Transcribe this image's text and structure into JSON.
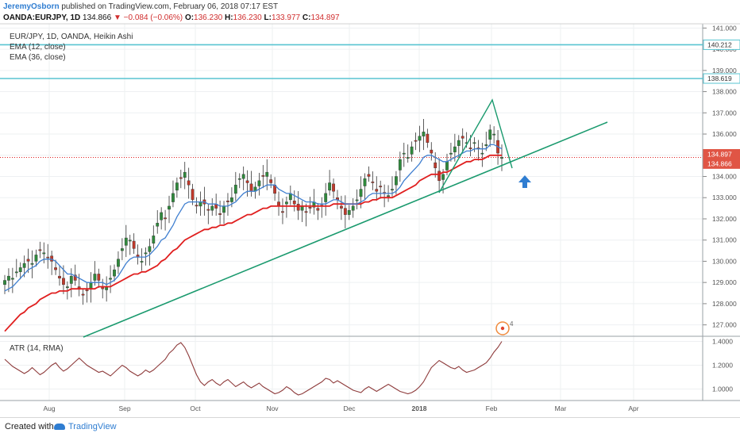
{
  "header": {
    "author": "JeremyOsborn",
    "published_text": "published on TradingView.com, February 06, 2018 07:17 EST",
    "symbol": "OANDA:EURJPY, 1D",
    "last": "134.866",
    "change": "▼ −0.084 (−0.06%)",
    "open_label": "O:",
    "open": "136.230",
    "high_label": "H:",
    "high": "136.230",
    "low_label": "L:",
    "low": "133.977",
    "close_label": "C:",
    "close": "134.897"
  },
  "legend": {
    "main": "EUR/JPY, 1D, OANDA, Heikin Ashi",
    "ema_fast": "EMA (12, close)",
    "ema_slow": "EMA (36, close)",
    "atr": "ATR (14, RMA)"
  },
  "colors": {
    "up": "#2f8a3c",
    "down": "#c0392b",
    "ema_fast": "#3f7fd0",
    "ema_slow": "#e01f1f",
    "trend": "#1a9a6e",
    "hline": "#58c4d1",
    "atr": "#8e3b3b",
    "arrow": "#2f7dd1",
    "tag_red": "#e05545"
  },
  "chart_data": {
    "type": "candlestick",
    "price_axis": {
      "ticks": [
        "141.000",
        "140.000",
        "139.000",
        "138.000",
        "137.000",
        "136.000",
        "135.000",
        "134.000",
        "133.000",
        "132.000",
        "131.000",
        "130.000",
        "129.000",
        "128.000",
        "127.000"
      ],
      "range": [
        126.5,
        141.2
      ]
    },
    "atr_axis": {
      "ticks": [
        "1.4000",
        "1.2000",
        "1.0000"
      ],
      "range": [
        0.93,
        1.41
      ]
    },
    "time_axis": [
      "Aug",
      "Sep",
      "Oct",
      "Nov",
      "Dec",
      "2018",
      "Feb",
      "Mar",
      "Apr"
    ],
    "price_labels": [
      {
        "text": "140.212",
        "value": 140.212,
        "style": "line"
      },
      {
        "text": "138.619",
        "value": 138.619,
        "style": "line"
      },
      {
        "text": "134.897",
        "value": 134.897,
        "style": "red"
      },
      {
        "text": "134.866",
        "value": 134.866,
        "style": "red"
      }
    ],
    "candles_close": [
      129.1,
      129.3,
      129.2,
      129.5,
      129.7,
      129.9,
      130.0,
      129.9,
      130.3,
      130.5,
      130.4,
      130.2,
      130.0,
      129.6,
      129.2,
      128.9,
      128.8,
      129.3,
      129.1,
      128.7,
      128.4,
      128.6,
      129.0,
      129.4,
      129.1,
      128.7,
      128.8,
      129.2,
      129.6,
      130.1,
      130.6,
      131.1,
      131.0,
      130.6,
      130.2,
      130.0,
      130.4,
      130.7,
      131.2,
      131.8,
      132.3,
      132.0,
      132.6,
      133.2,
      133.7,
      133.9,
      134.2,
      133.6,
      132.9,
      132.6,
      132.8,
      132.7,
      132.4,
      132.6,
      132.5,
      132.2,
      132.6,
      132.8,
      133.0,
      133.6,
      133.9,
      134.1,
      133.7,
      133.3,
      133.5,
      133.8,
      134.0,
      134.2,
      133.7,
      133.2,
      132.6,
      132.3,
      132.8,
      133.2,
      132.7,
      132.4,
      132.6,
      132.3,
      132.5,
      132.8,
      132.4,
      132.6,
      133.2,
      133.7,
      133.3,
      132.9,
      132.5,
      132.2,
      132.4,
      132.6,
      132.9,
      133.4,
      133.9,
      134.0,
      133.7,
      133.3,
      133.5,
      133.2,
      133.1,
      133.4,
      134.0,
      134.8,
      135.1,
      134.9,
      135.4,
      135.7,
      135.9,
      136.1,
      135.6,
      135.1,
      134.4,
      133.8,
      134.1,
      134.7,
      135.1,
      135.4,
      135.7,
      135.8,
      135.6,
      135.3,
      135.6,
      135.3,
      135.1,
      135.5,
      136.2,
      136.0,
      135.1,
      134.9
    ],
    "ema_fast": [
      128.6,
      128.7,
      128.8,
      129.0,
      129.2,
      129.4,
      129.6,
      129.7,
      129.8,
      130.0,
      130.1,
      130.1,
      130.1,
      130.0,
      129.8,
      129.6,
      129.4,
      129.4,
      129.3,
      129.2,
      129.1,
      129.0,
      129.0,
      129.0,
      129.0,
      129.0,
      128.9,
      129.0,
      129.1,
      129.3,
      129.6,
      129.9,
      130.1,
      130.2,
      130.2,
      130.2,
      130.2,
      130.3,
      130.5,
      130.7,
      131.0,
      131.1,
      131.4,
      131.7,
      132.1,
      132.4,
      132.7,
      132.8,
      132.8,
      132.8,
      132.8,
      132.8,
      132.7,
      132.7,
      132.7,
      132.6,
      132.6,
      132.6,
      132.7,
      132.8,
      133.0,
      133.2,
      133.3,
      133.3,
      133.3,
      133.4,
      133.5,
      133.6,
      133.6,
      133.6,
      133.4,
      133.3,
      133.2,
      133.2,
      133.1,
      133.0,
      132.9,
      132.8,
      132.8,
      132.8,
      132.7,
      132.7,
      132.7,
      132.8,
      132.9,
      132.9,
      132.8,
      132.7,
      132.7,
      132.7,
      132.7,
      132.8,
      132.9,
      133.1,
      133.2,
      133.2,
      133.2,
      133.2,
      133.2,
      133.2,
      133.3,
      133.5,
      133.8,
      134.0,
      134.2,
      134.4,
      134.6,
      134.9,
      135.0,
      135.0,
      134.9,
      134.8,
      134.7,
      134.7,
      134.8,
      134.9,
      135.0,
      135.1,
      135.2,
      135.2,
      135.3,
      135.3,
      135.3,
      135.3,
      135.5,
      135.5,
      135.4,
      135.3
    ],
    "ema_slow": [
      126.7,
      126.9,
      127.1,
      127.3,
      127.5,
      127.6,
      127.8,
      127.9,
      128.0,
      128.2,
      128.3,
      128.4,
      128.5,
      128.5,
      128.6,
      128.6,
      128.6,
      128.7,
      128.7,
      128.7,
      128.7,
      128.7,
      128.7,
      128.7,
      128.8,
      128.8,
      128.8,
      128.8,
      128.9,
      129.0,
      129.1,
      129.2,
      129.3,
      129.4,
      129.4,
      129.5,
      129.5,
      129.6,
      129.7,
      129.8,
      130.0,
      130.1,
      130.3,
      130.5,
      130.6,
      130.8,
      131.0,
      131.1,
      131.2,
      131.3,
      131.4,
      131.5,
      131.5,
      131.6,
      131.6,
      131.7,
      131.7,
      131.8,
      131.8,
      131.9,
      132.0,
      132.1,
      132.2,
      132.2,
      132.3,
      132.4,
      132.5,
      132.5,
      132.6,
      132.6,
      132.6,
      132.6,
      132.6,
      132.6,
      132.6,
      132.6,
      132.6,
      132.6,
      132.6,
      132.6,
      132.6,
      132.6,
      132.6,
      132.6,
      132.7,
      132.7,
      132.7,
      132.7,
      132.7,
      132.7,
      132.7,
      132.7,
      132.8,
      132.8,
      132.9,
      132.9,
      133.0,
      133.0,
      133.0,
      133.0,
      133.1,
      133.2,
      133.3,
      133.4,
      133.5,
      133.6,
      133.8,
      133.9,
      134.0,
      134.1,
      134.1,
      134.1,
      134.2,
      134.2,
      134.3,
      134.4,
      134.5,
      134.6,
      134.7,
      134.7,
      134.8,
      134.8,
      134.8,
      134.9,
      135.0,
      135.0,
      135.0,
      135.0
    ],
    "atr": [
      1.25,
      1.22,
      1.19,
      1.17,
      1.15,
      1.13,
      1.15,
      1.18,
      1.15,
      1.12,
      1.14,
      1.17,
      1.2,
      1.22,
      1.18,
      1.15,
      1.17,
      1.2,
      1.23,
      1.26,
      1.23,
      1.2,
      1.18,
      1.16,
      1.14,
      1.15,
      1.13,
      1.11,
      1.14,
      1.17,
      1.2,
      1.18,
      1.15,
      1.13,
      1.11,
      1.13,
      1.16,
      1.14,
      1.16,
      1.19,
      1.22,
      1.25,
      1.3,
      1.33,
      1.37,
      1.39,
      1.35,
      1.28,
      1.2,
      1.12,
      1.06,
      1.03,
      1.06,
      1.08,
      1.05,
      1.03,
      1.06,
      1.08,
      1.05,
      1.02,
      1.04,
      1.06,
      1.03,
      1.01,
      1.03,
      1.05,
      1.02,
      1.0,
      0.98,
      0.96,
      0.97,
      0.99,
      1.02,
      1.0,
      0.97,
      0.95,
      0.96,
      0.98,
      1.0,
      1.02,
      1.04,
      1.06,
      1.09,
      1.08,
      1.05,
      1.07,
      1.05,
      1.03,
      1.01,
      0.99,
      0.98,
      0.97,
      1.0,
      1.02,
      1.0,
      0.98,
      1.0,
      1.02,
      1.04,
      1.02,
      1.0,
      0.98,
      0.97,
      0.96,
      0.97,
      0.99,
      1.02,
      1.06,
      1.12,
      1.18,
      1.21,
      1.24,
      1.22,
      1.2,
      1.18,
      1.17,
      1.19,
      1.16,
      1.14,
      1.15,
      1.16,
      1.18,
      1.2,
      1.22,
      1.26,
      1.31,
      1.35,
      1.4
    ],
    "annotations": [
      {
        "type": "trendline",
        "from": {
          "x": "Aug",
          "y": 126.5
        },
        "to": {
          "x": "Mar",
          "y": 136.5
        }
      },
      {
        "type": "pattern",
        "points": [
          {
            "y": 133.1
          },
          {
            "y": 137.7
          },
          {
            "y": 134.7
          }
        ]
      },
      {
        "type": "arrow",
        "direction": "up",
        "y": 134.0
      },
      {
        "type": "event_marker",
        "label": "4"
      }
    ]
  }
}
